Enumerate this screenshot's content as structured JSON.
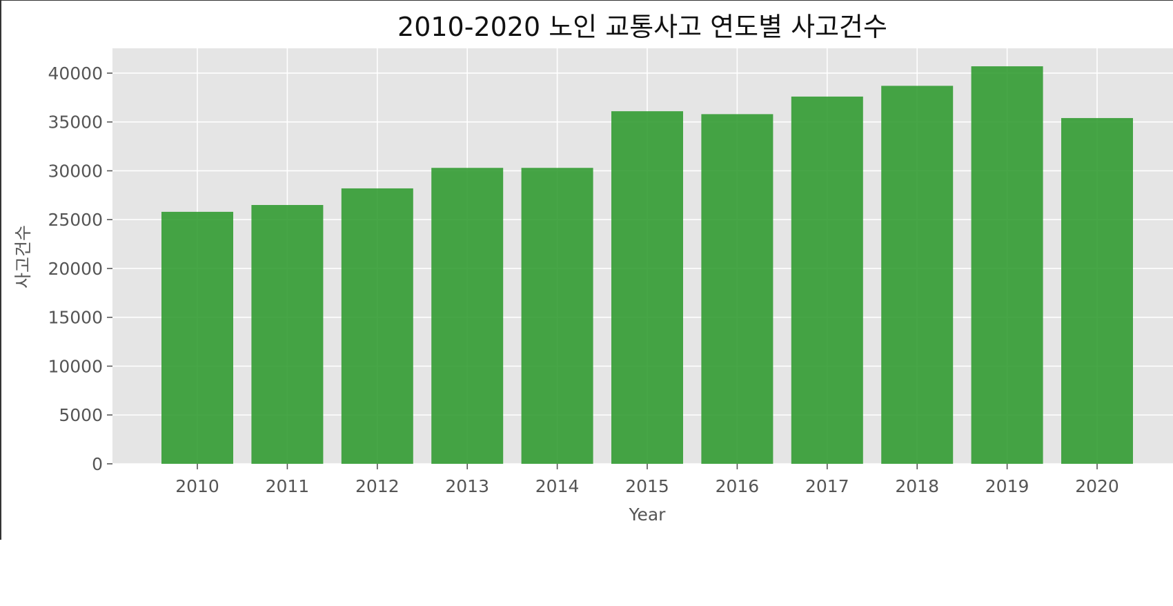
{
  "chart_data": {
    "type": "bar",
    "title": "2010-2020 노인 교통사고 연도별 사고건수",
    "xlabel": "Year",
    "ylabel": "사고건수",
    "categories": [
      "2010",
      "2011",
      "2012",
      "2013",
      "2014",
      "2015",
      "2016",
      "2017",
      "2018",
      "2019",
      "2020"
    ],
    "values": [
      25800,
      26500,
      28200,
      30300,
      30300,
      36100,
      35800,
      37600,
      38700,
      40700,
      35400
    ],
    "ylim": [
      0,
      42500
    ],
    "yticks": [
      "0",
      "5000",
      "10000",
      "15000",
      "20000",
      "25000",
      "30000",
      "35000",
      "40000"
    ],
    "grid": true,
    "colors": {
      "bar": "#2e9a2e",
      "plot_background": "#e5e5e5",
      "grid": "#ffffff"
    }
  }
}
